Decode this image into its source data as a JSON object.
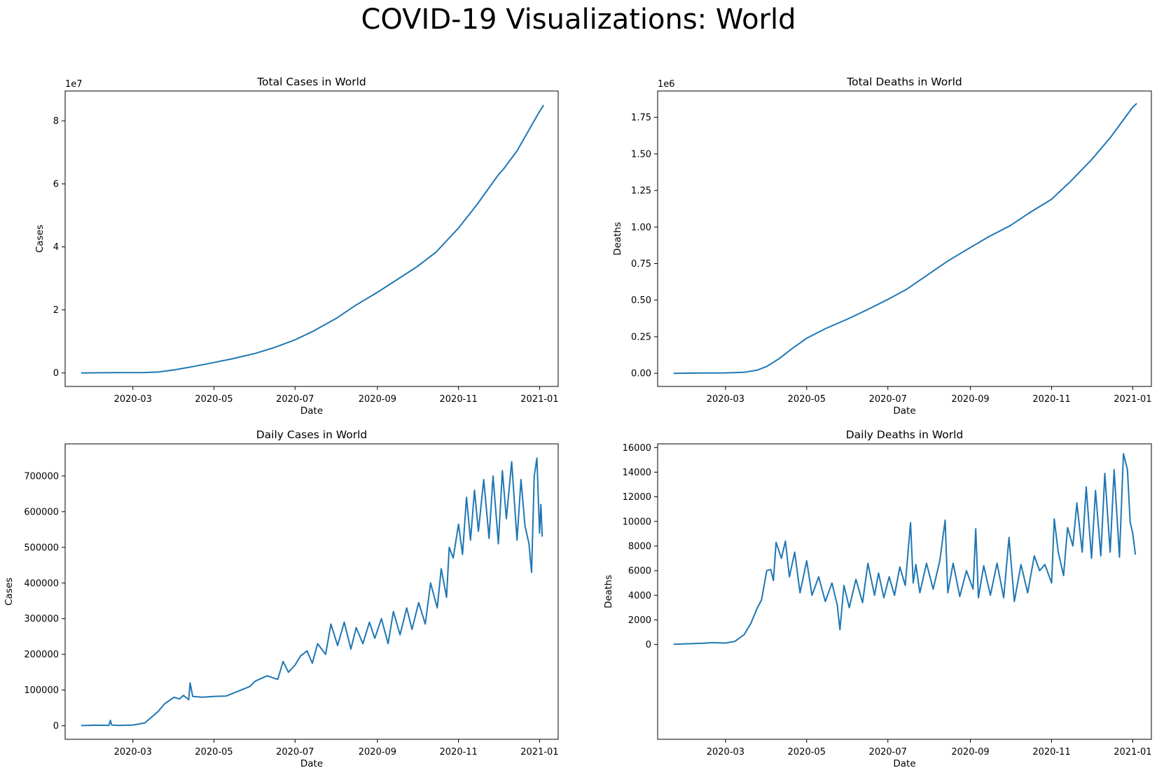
{
  "figure": {
    "suptitle": "COVID-19 Visualizations: World"
  },
  "chart_data": [
    {
      "id": "total-cases",
      "type": "line",
      "title": "Total Cases in World",
      "xlabel": "Date",
      "ylabel": "Cases",
      "offset_text": "1e7",
      "scale": 10000000,
      "color": "#1f77b4",
      "xlim": [
        "2020-01-10",
        "2021-01-15"
      ],
      "ylim": [
        -4300000,
        89500000
      ],
      "xticks": [
        {
          "date": "2020-03-01",
          "label": "2020-03"
        },
        {
          "date": "2020-05-01",
          "label": "2020-05"
        },
        {
          "date": "2020-07-01",
          "label": "2020-07"
        },
        {
          "date": "2020-09-01",
          "label": "2020-09"
        },
        {
          "date": "2020-11-01",
          "label": "2020-11"
        },
        {
          "date": "2021-01-01",
          "label": "2021-01"
        }
      ],
      "yticks": [
        {
          "value": 0,
          "label": "0"
        },
        {
          "value": 20000000,
          "label": "2"
        },
        {
          "value": 40000000,
          "label": "4"
        },
        {
          "value": 60000000,
          "label": "6"
        },
        {
          "value": 80000000,
          "label": "8"
        }
      ],
      "x": [
        "2020-01-22",
        "2020-02-15",
        "2020-03-10",
        "2020-03-20",
        "2020-04-01",
        "2020-04-15",
        "2020-05-01",
        "2020-05-15",
        "2020-06-01",
        "2020-06-15",
        "2020-07-01",
        "2020-07-15",
        "2020-08-01",
        "2020-08-15",
        "2020-09-01",
        "2020-09-15",
        "2020-10-01",
        "2020-10-15",
        "2020-11-01",
        "2020-11-15",
        "2020-12-01",
        "2020-12-05",
        "2020-12-15",
        "2021-01-01",
        "2021-01-04"
      ],
      "y": [
        600,
        70000,
        120000,
        270000,
        950000,
        2000000,
        3300000,
        4500000,
        6200000,
        8000000,
        10500000,
        13300000,
        17300000,
        21300000,
        25600000,
        29400000,
        33800000,
        38300000,
        46000000,
        53500000,
        62900000,
        64800000,
        70500000,
        83000000,
        85000000
      ]
    },
    {
      "id": "total-deaths",
      "type": "line",
      "title": "Total Deaths in World",
      "xlabel": "Date",
      "ylabel": "Deaths",
      "offset_text": "1e6",
      "scale": 1000000,
      "color": "#1f77b4",
      "xlim": [
        "2020-01-10",
        "2021-01-15"
      ],
      "ylim": [
        -90000,
        1930000
      ],
      "xticks": [
        {
          "date": "2020-03-01",
          "label": "2020-03"
        },
        {
          "date": "2020-05-01",
          "label": "2020-05"
        },
        {
          "date": "2020-07-01",
          "label": "2020-07"
        },
        {
          "date": "2020-09-01",
          "label": "2020-09"
        },
        {
          "date": "2020-11-01",
          "label": "2020-11"
        },
        {
          "date": "2021-01-01",
          "label": "2021-01"
        }
      ],
      "yticks": [
        {
          "value": 0,
          "label": "0.00"
        },
        {
          "value": 250000,
          "label": "0.25"
        },
        {
          "value": 500000,
          "label": "0.50"
        },
        {
          "value": 750000,
          "label": "0.75"
        },
        {
          "value": 1000000,
          "label": "1.00"
        },
        {
          "value": 1250000,
          "label": "1.25"
        },
        {
          "value": 1500000,
          "label": "1.50"
        },
        {
          "value": 1750000,
          "label": "1.75"
        }
      ],
      "x": [
        "2020-01-22",
        "2020-02-15",
        "2020-03-01",
        "2020-03-15",
        "2020-03-25",
        "2020-04-01",
        "2020-04-10",
        "2020-04-20",
        "2020-05-01",
        "2020-05-15",
        "2020-06-01",
        "2020-06-15",
        "2020-07-01",
        "2020-07-15",
        "2020-08-01",
        "2020-08-15",
        "2020-09-01",
        "2020-09-15",
        "2020-10-01",
        "2020-10-15",
        "2020-11-01",
        "2020-11-15",
        "2020-12-01",
        "2020-12-15",
        "2021-01-01",
        "2021-01-04"
      ],
      "y": [
        17,
        1700,
        3000,
        6500,
        22000,
        47000,
        98000,
        168000,
        240000,
        305000,
        372000,
        432000,
        505000,
        574000,
        680000,
        768000,
        860000,
        935000,
        1010000,
        1095000,
        1190000,
        1310000,
        1460000,
        1610000,
        1820000,
        1845000
      ]
    },
    {
      "id": "daily-cases",
      "type": "line",
      "title": "Daily Cases in World",
      "xlabel": "Date",
      "ylabel": "Cases",
      "color": "#1f77b4",
      "xlim": [
        "2020-01-10",
        "2021-01-15"
      ],
      "ylim": [
        -38000,
        790000
      ],
      "xticks": [
        {
          "date": "2020-03-01",
          "label": "2020-03"
        },
        {
          "date": "2020-05-01",
          "label": "2020-05"
        },
        {
          "date": "2020-07-01",
          "label": "2020-07"
        },
        {
          "date": "2020-09-01",
          "label": "2020-09"
        },
        {
          "date": "2020-11-01",
          "label": "2020-11"
        },
        {
          "date": "2021-01-01",
          "label": "2021-01"
        }
      ],
      "yticks": [
        {
          "value": 0,
          "label": "0"
        },
        {
          "value": 100000,
          "label": "100000"
        },
        {
          "value": 200000,
          "label": "200000"
        },
        {
          "value": 300000,
          "label": "300000"
        },
        {
          "value": 400000,
          "label": "400000"
        },
        {
          "value": 500000,
          "label": "500000"
        },
        {
          "value": 600000,
          "label": "600000"
        },
        {
          "value": 700000,
          "label": "700000"
        }
      ],
      "x": [
        "2020-01-22",
        "2020-02-01",
        "2020-02-12",
        "2020-02-13",
        "2020-02-14",
        "2020-02-20",
        "2020-03-01",
        "2020-03-10",
        "2020-03-20",
        "2020-03-25",
        "2020-04-01",
        "2020-04-05",
        "2020-04-08",
        "2020-04-12",
        "2020-04-13",
        "2020-04-15",
        "2020-04-22",
        "2020-05-01",
        "2020-05-10",
        "2020-05-20",
        "2020-05-28",
        "2020-06-01",
        "2020-06-10",
        "2020-06-18",
        "2020-06-22",
        "2020-06-26",
        "2020-07-01",
        "2020-07-05",
        "2020-07-10",
        "2020-07-14",
        "2020-07-18",
        "2020-07-24",
        "2020-07-28",
        "2020-08-02",
        "2020-08-07",
        "2020-08-12",
        "2020-08-16",
        "2020-08-21",
        "2020-08-26",
        "2020-08-30",
        "2020-09-04",
        "2020-09-09",
        "2020-09-13",
        "2020-09-18",
        "2020-09-23",
        "2020-09-27",
        "2020-10-02",
        "2020-10-07",
        "2020-10-11",
        "2020-10-16",
        "2020-10-19",
        "2020-10-23",
        "2020-10-25",
        "2020-10-28",
        "2020-11-01",
        "2020-11-04",
        "2020-11-07",
        "2020-11-10",
        "2020-11-13",
        "2020-11-16",
        "2020-11-20",
        "2020-11-24",
        "2020-11-27",
        "2020-12-01",
        "2020-12-04",
        "2020-12-07",
        "2020-12-11",
        "2020-12-15",
        "2020-12-18",
        "2020-12-21",
        "2020-12-24",
        "2020-12-26",
        "2020-12-28",
        "2020-12-30",
        "2021-01-01",
        "2021-01-02",
        "2021-01-03"
      ],
      "y": [
        500,
        1500,
        1000,
        15000,
        2000,
        1000,
        2000,
        8000,
        40000,
        62000,
        80000,
        75000,
        85000,
        73000,
        120000,
        82000,
        80000,
        82000,
        83000,
        98000,
        110000,
        125000,
        140000,
        130000,
        180000,
        150000,
        170000,
        195000,
        210000,
        175000,
        230000,
        200000,
        285000,
        225000,
        290000,
        215000,
        275000,
        230000,
        290000,
        245000,
        300000,
        230000,
        320000,
        255000,
        330000,
        270000,
        345000,
        285000,
        400000,
        330000,
        440000,
        360000,
        500000,
        470000,
        565000,
        480000,
        640000,
        520000,
        660000,
        545000,
        690000,
        525000,
        700000,
        510000,
        715000,
        580000,
        740000,
        520000,
        690000,
        560000,
        510000,
        430000,
        700000,
        750000,
        540000,
        620000,
        530000
      ]
    },
    {
      "id": "daily-deaths",
      "type": "line",
      "title": "Daily Deaths in World",
      "xlabel": "Date",
      "ylabel": "Deaths",
      "color": "#1f77b4",
      "xlim": [
        "2020-01-10",
        "2021-01-15"
      ],
      "ylim": [
        -7700.0,
        16300
      ],
      "xticks": [
        {
          "date": "2020-03-01",
          "label": "2020-03"
        },
        {
          "date": "2020-05-01",
          "label": "2020-05"
        },
        {
          "date": "2020-07-01",
          "label": "2020-07"
        },
        {
          "date": "2020-09-01",
          "label": "2020-09"
        },
        {
          "date": "2020-11-01",
          "label": "2020-11"
        },
        {
          "date": "2021-01-01",
          "label": "2021-01"
        }
      ],
      "yticks": [
        {
          "value": 0,
          "label": "0"
        },
        {
          "value": 2000,
          "label": "2000"
        },
        {
          "value": 4000,
          "label": "4000"
        },
        {
          "value": 6000,
          "label": "6000"
        },
        {
          "value": 8000,
          "label": "8000"
        },
        {
          "value": 10000,
          "label": "10000"
        },
        {
          "value": 12000,
          "label": "12000"
        },
        {
          "value": 14000,
          "label": "14000"
        },
        {
          "value": 16000,
          "label": "16000"
        }
      ],
      "x": [
        "2020-01-22",
        "2020-02-01",
        "2020-02-12",
        "2020-02-20",
        "2020-03-01",
        "2020-03-08",
        "2020-03-15",
        "2020-03-20",
        "2020-03-25",
        "2020-03-28",
        "2020-04-01",
        "2020-04-04",
        "2020-04-06",
        "2020-04-08",
        "2020-04-12",
        "2020-04-15",
        "2020-04-18",
        "2020-04-22",
        "2020-04-26",
        "2020-05-01",
        "2020-05-05",
        "2020-05-10",
        "2020-05-15",
        "2020-05-20",
        "2020-05-24",
        "2020-05-26",
        "2020-05-29",
        "2020-06-02",
        "2020-06-07",
        "2020-06-12",
        "2020-06-16",
        "2020-06-21",
        "2020-06-24",
        "2020-06-28",
        "2020-07-02",
        "2020-07-06",
        "2020-07-10",
        "2020-07-14",
        "2020-07-18",
        "2020-07-20",
        "2020-07-22",
        "2020-07-25",
        "2020-07-30",
        "2020-08-04",
        "2020-08-09",
        "2020-08-13",
        "2020-08-15",
        "2020-08-19",
        "2020-08-24",
        "2020-08-29",
        "2020-09-03",
        "2020-09-05",
        "2020-09-07",
        "2020-09-11",
        "2020-09-16",
        "2020-09-21",
        "2020-09-26",
        "2020-09-30",
        "2020-10-04",
        "2020-10-09",
        "2020-10-14",
        "2020-10-19",
        "2020-10-23",
        "2020-10-27",
        "2020-11-01",
        "2020-11-03",
        "2020-11-06",
        "2020-11-10",
        "2020-11-13",
        "2020-11-17",
        "2020-11-20",
        "2020-11-24",
        "2020-11-27",
        "2020-12-01",
        "2020-12-04",
        "2020-12-08",
        "2020-12-11",
        "2020-12-15",
        "2020-12-18",
        "2020-12-22",
        "2020-12-25",
        "2020-12-28",
        "2020-12-30",
        "2021-01-01",
        "2021-01-03"
      ],
      "y": [
        17,
        60,
        100,
        150,
        120,
        250,
        800,
        1700,
        3000,
        3600,
        6000,
        6100,
        5200,
        8300,
        7000,
        8400,
        5500,
        7500,
        4200,
        6800,
        4000,
        5500,
        3500,
        5000,
        3200,
        1200,
        4800,
        3000,
        5300,
        3400,
        6600,
        4000,
        5800,
        3800,
        5500,
        4000,
        6300,
        4800,
        9900,
        5000,
        6500,
        4200,
        6600,
        4500,
        6800,
        10100,
        4200,
        6600,
        3900,
        6000,
        4500,
        9400,
        3800,
        6400,
        4000,
        6600,
        3800,
        8700,
        3500,
        6500,
        4200,
        7200,
        6000,
        6500,
        5000,
        10200,
        7500,
        5600,
        9500,
        8000,
        11500,
        7500,
        12800,
        7000,
        12500,
        7200,
        13900,
        7500,
        14200,
        7100,
        15500,
        14200,
        10000,
        9000,
        7300
      ]
    }
  ]
}
